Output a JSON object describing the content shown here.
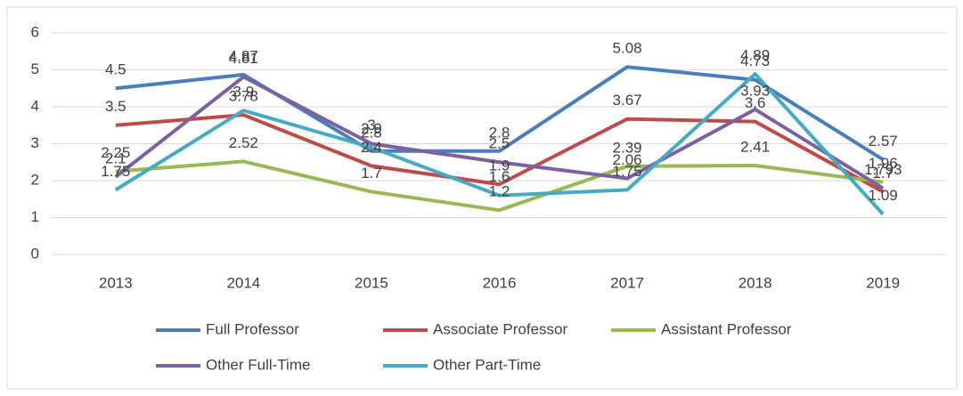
{
  "chart_data": {
    "type": "line",
    "categories": [
      "2013",
      "2014",
      "2015",
      "2016",
      "2017",
      "2018",
      "2019"
    ],
    "series": [
      {
        "name": "Full Professor",
        "color": "#4a7ebb",
        "values": [
          4.5,
          4.87,
          2.8,
          2.8,
          5.08,
          4.73,
          2.57
        ]
      },
      {
        "name": "Associate Professor",
        "color": "#be4b48",
        "values": [
          3.5,
          3.78,
          2.4,
          1.9,
          3.67,
          3.6,
          1.7
        ]
      },
      {
        "name": "Assistant Professor",
        "color": "#98b954",
        "values": [
          2.25,
          2.52,
          1.7,
          1.2,
          2.39,
          2.41,
          1.96
        ]
      },
      {
        "name": "Other Full-Time",
        "color": "#7d60a0",
        "values": [
          2.1,
          4.81,
          3,
          2.5,
          2.06,
          3.93,
          1.793
        ]
      },
      {
        "name": "Other Part-Time",
        "color": "#46aac5",
        "values": [
          1.75,
          3.9,
          2.9,
          1.6,
          1.75,
          4.89,
          1.09
        ]
      }
    ],
    "ylim": [
      0,
      6
    ],
    "yticks": [
      0,
      1,
      2,
      3,
      4,
      5,
      6
    ],
    "grid": true,
    "legend": "bottom"
  }
}
